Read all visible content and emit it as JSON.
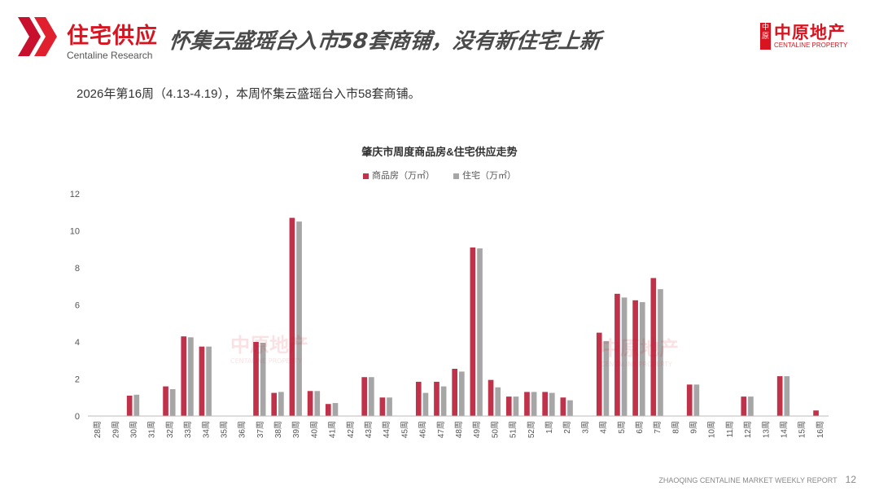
{
  "header": {
    "section_title": "住宅供应",
    "section_subtitle": "Centaline Research",
    "headline": "怀集云盛瑶台入市58套商铺，没有新住宅上新",
    "logo_cn": "中原地产",
    "logo_en": "CENTALINE PROPERTY",
    "logo_seal": "中原"
  },
  "intro_text": "2026年第16周（4.13-4.19），本周怀集云盛瑶台入市58套商铺。",
  "watermark": {
    "cn": "中原地产",
    "en": "CENTALINE PROPERTY"
  },
  "footer": {
    "report": "ZHAOQING  CENTALINE MARKET WEEKLY REPORT",
    "page": "12"
  },
  "colors": {
    "commercial": "#c0314a",
    "residential": "#a6a6a6",
    "brand": "#d7141f"
  },
  "chart_data": {
    "type": "bar",
    "title": "肇庆市周度商品房&住宅供应走势",
    "xlabel": "",
    "ylabel": "",
    "ylim": [
      0,
      12
    ],
    "yticks": [
      0,
      2,
      4,
      6,
      8,
      10,
      12
    ],
    "grid": false,
    "legend_position": "top",
    "categories": [
      "28周",
      "29周",
      "30周",
      "31周",
      "32周",
      "33周",
      "34周",
      "35周",
      "36周",
      "37周",
      "38周",
      "39周",
      "40周",
      "41周",
      "42周",
      "43周",
      "44周",
      "45周",
      "46周",
      "47周",
      "48周",
      "49周",
      "50周",
      "51周",
      "52周",
      "1周",
      "2周",
      "3周",
      "4周",
      "5周",
      "6周",
      "7周",
      "8周",
      "9周",
      "10周",
      "11周",
      "12周",
      "13周",
      "14周",
      "15周",
      "16周"
    ],
    "series": [
      {
        "name": "商品房（万㎡）",
        "color": "#c0314a",
        "values": [
          0,
          0,
          1.1,
          0,
          1.6,
          4.3,
          3.75,
          0,
          0,
          4.0,
          1.25,
          10.7,
          1.35,
          0.65,
          0,
          2.1,
          1.0,
          0,
          1.85,
          1.85,
          2.55,
          9.1,
          1.95,
          1.05,
          1.3,
          1.3,
          1.0,
          0,
          4.5,
          6.6,
          6.25,
          7.45,
          0,
          1.7,
          0,
          0,
          1.05,
          0,
          2.15,
          0,
          0.3
        ]
      },
      {
        "name": "住宅（万㎡）",
        "color": "#a6a6a6",
        "values": [
          0,
          0,
          1.15,
          0,
          1.45,
          4.25,
          3.75,
          0,
          0,
          3.95,
          1.3,
          10.5,
          1.35,
          0.7,
          0,
          2.1,
          1.0,
          0,
          1.25,
          1.6,
          2.4,
          9.05,
          1.55,
          1.05,
          1.3,
          1.25,
          0.85,
          0,
          4.05,
          6.4,
          6.15,
          6.85,
          0,
          1.7,
          0,
          0,
          1.05,
          0,
          2.15,
          0,
          0
        ]
      }
    ]
  }
}
